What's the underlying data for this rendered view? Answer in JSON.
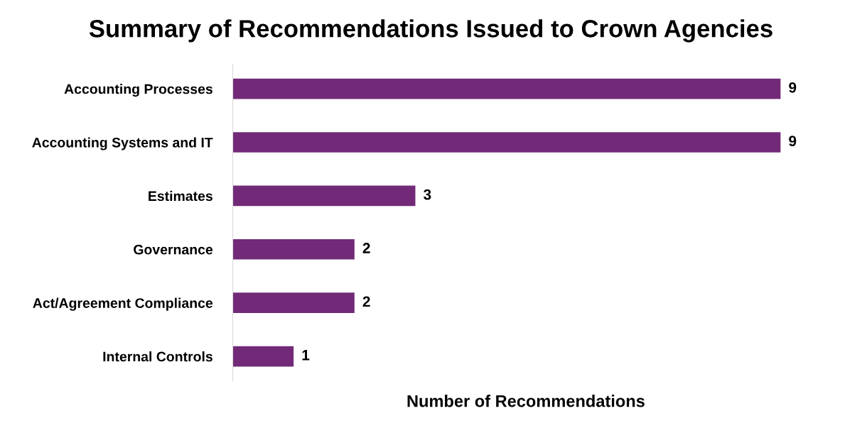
{
  "chart_data": {
    "type": "bar",
    "orientation": "horizontal",
    "title": "Summary of Recommendations Issued to Crown Agencies",
    "xlabel": "Number of Recommendations",
    "categories": [
      "Accounting Processes",
      "Accounting Systems and IT",
      "Estimates",
      "Governance",
      "Act/Agreement Compliance",
      "Internal Controls"
    ],
    "values": [
      9,
      9,
      3,
      2,
      2,
      1
    ],
    "color": "#722a78",
    "data_labels": true,
    "tick_labels": "y",
    "grid": false,
    "legend": false
  }
}
